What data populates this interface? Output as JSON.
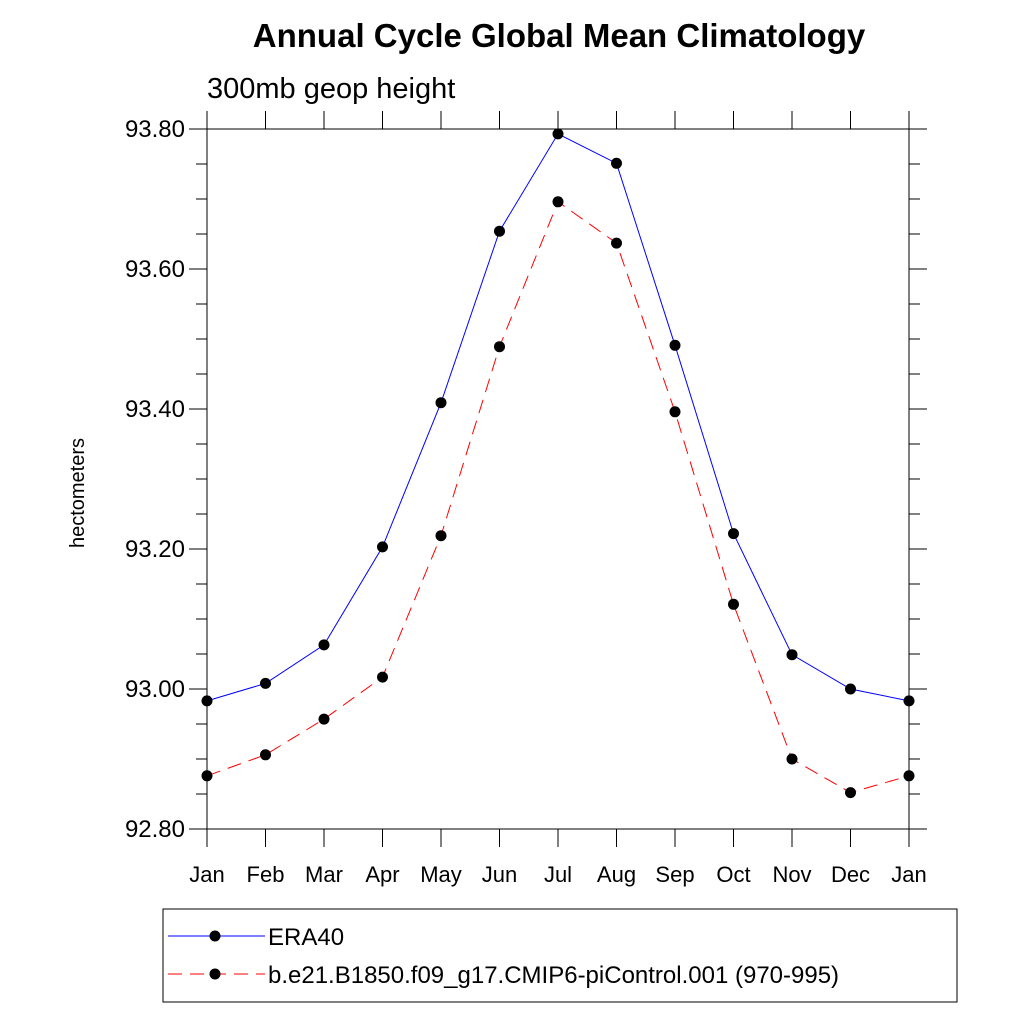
{
  "chart_data": {
    "type": "line",
    "title": "Annual Cycle Global Mean Climatology",
    "subtitle": "300mb geop height",
    "ylabel": "hectometers",
    "xlabel": "",
    "categories": [
      "Jan",
      "Feb",
      "Mar",
      "Apr",
      "May",
      "Jun",
      "Jul",
      "Aug",
      "Sep",
      "Oct",
      "Nov",
      "Dec",
      "Jan"
    ],
    "ylim": [
      92.8,
      93.8
    ],
    "yticks": [
      "92.80",
      "93.00",
      "93.20",
      "93.40",
      "93.60",
      "93.80"
    ],
    "grid": false,
    "legend_position": "bottom",
    "series": [
      {
        "name": "ERA40",
        "color": "#0000ff",
        "line_style": "solid",
        "marker": "filled-circle",
        "values": [
          92.983,
          93.008,
          93.063,
          93.203,
          93.409,
          93.654,
          93.793,
          93.751,
          93.491,
          93.222,
          93.049,
          93.0,
          92.983
        ]
      },
      {
        "name": "b.e21.B1850.f09_g17.CMIP6-piControl.001 (970-995)",
        "color": "#ff0000",
        "line_style": "dashed",
        "marker": "filled-circle",
        "values": [
          92.876,
          92.906,
          92.957,
          93.017,
          93.219,
          93.489,
          93.696,
          93.637,
          93.396,
          93.121,
          92.9,
          92.852,
          92.876
        ]
      }
    ]
  }
}
